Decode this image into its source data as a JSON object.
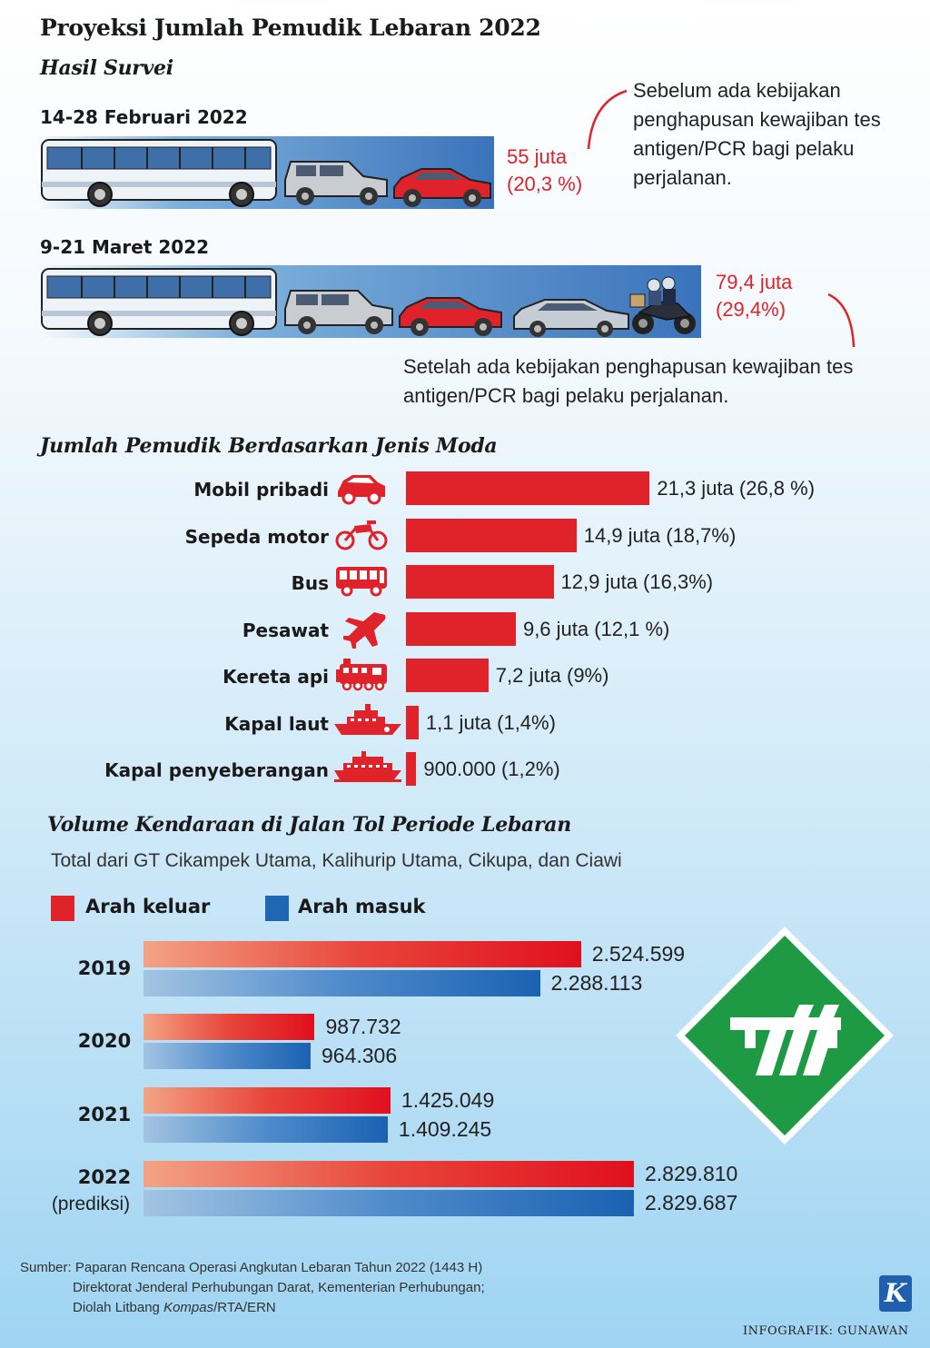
{
  "title": "Proyeksi Jumlah Pemudik Lebaran 2022",
  "survey": {
    "heading": "Hasil Survei",
    "periods": [
      {
        "label": "14-28 Februari 2022",
        "value_line1": "55 juta",
        "value_line2": "(20,3 %)",
        "value_juta": 55,
        "percent": 20.3,
        "note": [
          "Sebelum ada kebijakan",
          "penghapusan kewajiban tes",
          "antigen/PCR bagi pelaku",
          "perjalanan."
        ]
      },
      {
        "label": "9-21 Maret 2022",
        "value_line1": "79,4 juta",
        "value_line2": "(29,4%)",
        "value_juta": 79.4,
        "percent": 29.4,
        "note": [
          "Setelah ada kebijakan penghapusan kewajiban tes",
          "antigen/PCR bagi pelaku perjalanan."
        ]
      }
    ]
  },
  "moda": {
    "heading": "Jumlah Pemudik Berdasarkan Jenis Moda",
    "items": [
      {
        "label": "Mobil pribadi",
        "value_text": "21,3 juta (26,8 %)",
        "value": 21.3,
        "icon": "car-icon"
      },
      {
        "label": "Sepeda motor",
        "value_text": "14,9 juta (18,7%)",
        "value": 14.9,
        "icon": "motorcycle-icon"
      },
      {
        "label": "Bus",
        "value_text": "12,9 juta (16,3%)",
        "value": 12.9,
        "icon": "bus-icon"
      },
      {
        "label": "Pesawat",
        "value_text": "9,6 juta (12,1 %)",
        "value": 9.6,
        "icon": "airplane-icon"
      },
      {
        "label": "Kereta api",
        "value_text": "7,2 juta (9%)",
        "value": 7.2,
        "icon": "train-icon"
      },
      {
        "label": "Kapal laut",
        "value_text": "1,1 juta (1,4%)",
        "value": 1.1,
        "icon": "ship-icon"
      },
      {
        "label": "Kapal penyeberangan",
        "value_text": "900.000 (1,2%)",
        "value": 0.9,
        "icon": "ferry-icon"
      }
    ]
  },
  "tol": {
    "heading": "Volume Kendaraan di Jalan Tol Periode Lebaran",
    "subheading": "Total dari GT Cikampek Utama, Kalihurip Utama, Cikupa, dan Ciawi",
    "legend": {
      "out": "Arah keluar",
      "in": "Arah masuk"
    },
    "colors": {
      "out": "#e0222b",
      "in": "#1f66b3",
      "sign": "#1e9a44"
    },
    "icon": "toll-road-sign-icon"
  },
  "chart_data": [
    {
      "type": "bar",
      "title": "Jumlah Pemudik Berdasarkan Jenis Moda",
      "categories": [
        "Mobil pribadi",
        "Sepeda motor",
        "Bus",
        "Pesawat",
        "Kereta api",
        "Kapal laut",
        "Kapal penyeberangan"
      ],
      "values": [
        21.3,
        14.9,
        12.9,
        9.6,
        7.2,
        1.1,
        0.9
      ],
      "percents": [
        26.8,
        18.7,
        16.3,
        12.1,
        9,
        1.4,
        1.2
      ],
      "orientation": "horizontal"
    },
    {
      "type": "bar",
      "title": "Volume Kendaraan di Jalan Tol Periode Lebaran",
      "orientation": "horizontal",
      "categories": [
        "2019",
        "2020",
        "2021",
        "2022"
      ],
      "category_notes": [
        "",
        "",
        "",
        "(prediksi)"
      ],
      "series": [
        {
          "name": "Arah keluar",
          "values": [
            2524599,
            987732,
            1425049,
            2829810
          ],
          "labels": [
            "2.524.599",
            "987.732",
            "1.425.049",
            "2.829.810"
          ]
        },
        {
          "name": "Arah masuk",
          "values": [
            2288113,
            964306,
            1409245,
            2829687
          ],
          "labels": [
            "2.288.113",
            "964.306",
            "1.409.245",
            "2.829.687"
          ]
        }
      ],
      "legend": "top-left"
    }
  ],
  "footer": {
    "source_lines": [
      "Sumber: Paparan Rencana Operasi Angkutan Lebaran Tahun 2022 (1443 H)",
      "Direktorat Jenderal Perhubungan Darat, Kementerian Perhubungan;"
    ],
    "processed_prefix": "Diolah Litbang ",
    "processed_publication": "Kompas",
    "processed_suffix": "/RTA/ERN",
    "credit": "INFOGRAFIK: GUNAWAN",
    "logo_letter": "K"
  }
}
